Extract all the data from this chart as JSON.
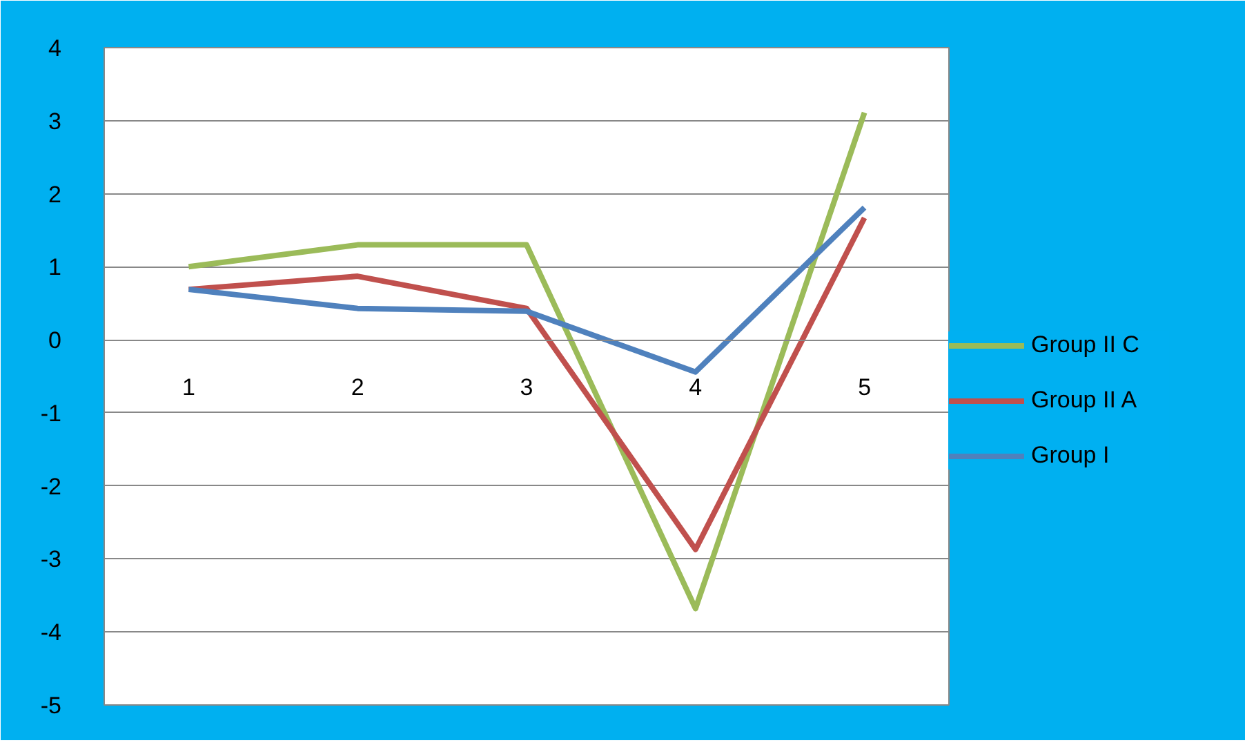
{
  "chart_data": {
    "type": "line",
    "categories": [
      "1",
      "2",
      "3",
      "4",
      "5"
    ],
    "series": [
      {
        "name": "Group II C",
        "color": "#9bbb59",
        "values": [
          1.0,
          1.3,
          1.3,
          -3.68,
          3.11
        ]
      },
      {
        "name": "Group II A",
        "color": "#c0504d",
        "values": [
          0.69,
          0.87,
          0.43,
          -2.87,
          1.67
        ]
      },
      {
        "name": "Group I",
        "color": "#4f81bd",
        "values": [
          0.69,
          0.43,
          0.39,
          -0.44,
          1.81
        ]
      }
    ],
    "ylim": [
      -5,
      4
    ],
    "yticks": [
      -5,
      -4,
      -3,
      -2,
      -1,
      0,
      1,
      2,
      3,
      4
    ],
    "grid": "y",
    "legend": "right",
    "marker": "none",
    "line_style": "solid"
  }
}
